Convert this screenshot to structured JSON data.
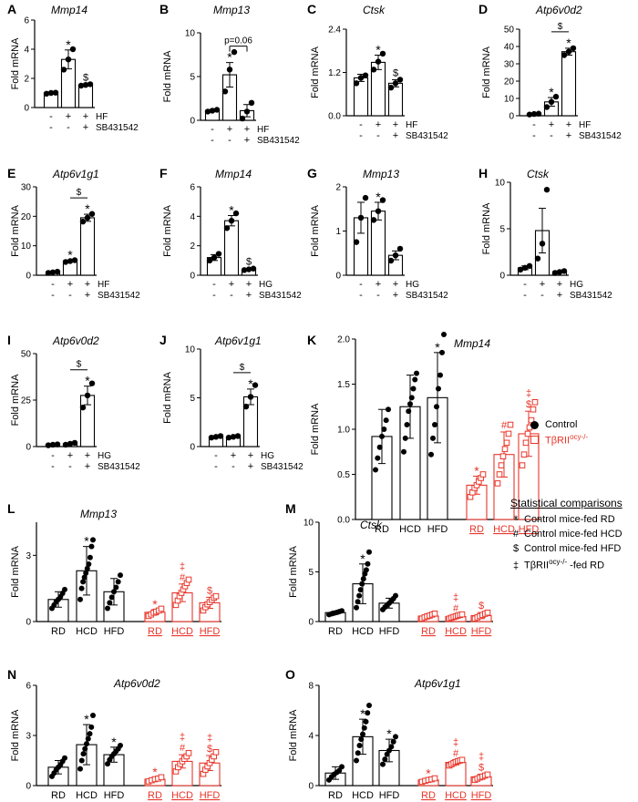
{
  "chart_data": [
    {
      "type": "bar",
      "panel": "A",
      "title": "Mmp14",
      "ylabel": "Fold mRNA",
      "ylim": [
        0,
        6
      ],
      "yticks": [
        "0",
        "2",
        "4",
        "6"
      ],
      "groups": [
        {
          "mean": 1.0,
          "err": 0.05,
          "points": [
            0.95,
            1.0,
            1.02
          ]
        },
        {
          "mean": 3.3,
          "err": 0.65,
          "points": [
            2.6,
            3.3,
            4.0
          ]
        },
        {
          "mean": 1.55,
          "err": 0.05,
          "points": [
            1.5,
            1.55,
            1.6
          ]
        }
      ],
      "sig": [
        "",
        "*",
        "$"
      ],
      "treat_label": "HF",
      "inhib_label": "SB431542",
      "treat": [
        "-",
        "+",
        "+"
      ],
      "inhib": [
        "-",
        "-",
        "+"
      ]
    },
    {
      "type": "bar",
      "panel": "B",
      "title": "Mmp13",
      "ylabel": "Fold mRNA",
      "ylim": [
        0,
        10
      ],
      "yticks": [
        "0",
        "5",
        "10"
      ],
      "groups": [
        {
          "mean": 1.1,
          "err": 0.1,
          "points": [
            1.0,
            1.1,
            1.2
          ]
        },
        {
          "mean": 5.2,
          "err": 1.4,
          "points": [
            3.3,
            5.8,
            7.8
          ]
        },
        {
          "mean": 1.1,
          "err": 0.7,
          "points": [
            0.2,
            1.0,
            2.0
          ]
        }
      ],
      "sig": [
        "",
        "*",
        ""
      ],
      "bracket": {
        "from": 1,
        "to": 2,
        "label": "p=0.06"
      },
      "treat_label": "HF",
      "inhib_label": "SB431542",
      "treat": [
        "-",
        "+",
        "+"
      ],
      "inhib": [
        "-",
        "-",
        "+"
      ]
    },
    {
      "type": "bar",
      "panel": "C",
      "title": "Ctsk",
      "ylabel": "Fold mRNA",
      "ylim": [
        0,
        2.4
      ],
      "yticks": [
        "0.0",
        "1.2",
        "2.4"
      ],
      "groups": [
        {
          "mean": 1.05,
          "err": 0.1,
          "points": [
            0.9,
            1.05,
            1.12
          ]
        },
        {
          "mean": 1.48,
          "err": 0.2,
          "points": [
            1.28,
            1.5,
            1.72
          ]
        },
        {
          "mean": 0.9,
          "err": 0.1,
          "points": [
            0.78,
            0.9,
            1.0
          ]
        }
      ],
      "sig": [
        "",
        "*",
        "$"
      ],
      "treat_label": "HF",
      "inhib_label": "SB431542",
      "treat": [
        "-",
        "+",
        "+"
      ],
      "inhib": [
        "-",
        "-",
        "+"
      ]
    },
    {
      "type": "bar",
      "panel": "D",
      "title": "Atp6v0d2",
      "ylabel": "Fold mRNA",
      "ylim": [
        0,
        50
      ],
      "yticks": [
        "0",
        "10",
        "20",
        "30",
        "40",
        "50"
      ],
      "groups": [
        {
          "mean": 1.0,
          "err": 0.3,
          "points": [
            0.7,
            1.0,
            1.2
          ]
        },
        {
          "mean": 8.0,
          "err": 2.5,
          "points": [
            5.0,
            8.0,
            11.0
          ]
        },
        {
          "mean": 37.0,
          "err": 2.0,
          "points": [
            35.0,
            37.0,
            39.0
          ]
        }
      ],
      "sig": [
        "",
        "*",
        "*"
      ],
      "bracket": {
        "from": 1,
        "to": 2,
        "label": "$"
      },
      "treat_label": "HF",
      "inhib_label": "SB431542",
      "treat": [
        "-",
        "+",
        "+"
      ],
      "inhib": [
        "-",
        "-",
        "+"
      ]
    },
    {
      "type": "bar",
      "panel": "E",
      "title": "Atp6v1g1",
      "ylabel": "Fold mRNA",
      "ylim": [
        0,
        30
      ],
      "yticks": [
        "0",
        "10",
        "20",
        "30"
      ],
      "groups": [
        {
          "mean": 1.0,
          "err": 0.2,
          "points": [
            0.8,
            1.0,
            1.2
          ]
        },
        {
          "mean": 4.8,
          "err": 0.3,
          "points": [
            4.5,
            4.8,
            5.1
          ]
        },
        {
          "mean": 19.5,
          "err": 1.2,
          "points": [
            18.2,
            19.5,
            20.8
          ]
        }
      ],
      "sig": [
        "",
        "*",
        "*"
      ],
      "bracket": {
        "from": 1,
        "to": 2,
        "label": "$"
      },
      "treat_label": "HF",
      "inhib_label": "SB431542",
      "treat": [
        "-",
        "+",
        "+"
      ],
      "inhib": [
        "-",
        "-",
        "+"
      ]
    },
    {
      "type": "bar",
      "panel": "F",
      "title": "Mmp14",
      "ylabel": "Fold mRNA",
      "ylim": [
        0,
        6
      ],
      "yticks": [
        "0",
        "2",
        "4",
        "6"
      ],
      "groups": [
        {
          "mean": 1.2,
          "err": 0.2,
          "points": [
            1.0,
            1.2,
            1.45
          ]
        },
        {
          "mean": 3.7,
          "err": 0.35,
          "points": [
            3.2,
            3.7,
            4.2
          ]
        },
        {
          "mean": 0.4,
          "err": 0.05,
          "points": [
            0.35,
            0.4,
            0.45
          ]
        }
      ],
      "sig": [
        "",
        "*",
        "$"
      ],
      "treat_label": "HG",
      "inhib_label": "SB431542",
      "treat": [
        "-",
        "+",
        "+"
      ],
      "inhib": [
        "-",
        "-",
        "+"
      ]
    },
    {
      "type": "bar",
      "panel": "G",
      "title": "Mmp13",
      "ylabel": "Fold mRNA",
      "ylim": [
        0,
        2
      ],
      "yticks": [
        "0",
        "1",
        "2"
      ],
      "groups": [
        {
          "mean": 1.3,
          "err": 0.35,
          "points": [
            0.75,
            1.3,
            1.75
          ]
        },
        {
          "mean": 1.45,
          "err": 0.2,
          "points": [
            1.25,
            1.45,
            1.7
          ]
        },
        {
          "mean": 0.45,
          "err": 0.1,
          "points": [
            0.33,
            0.45,
            0.6
          ]
        }
      ],
      "sig": [
        "",
        "*",
        ""
      ],
      "treat_label": "HG",
      "inhib_label": "SB431542",
      "treat": [
        "-",
        "+",
        "+"
      ],
      "inhib": [
        "-",
        "-",
        "+"
      ]
    },
    {
      "type": "bar",
      "panel": "H",
      "title": "Ctsk",
      "ylabel": "Fold mRNA",
      "ylim": [
        0,
        10
      ],
      "yticks": [
        "0",
        "5",
        "10"
      ],
      "groups": [
        {
          "mean": 0.8,
          "err": 0.2,
          "points": [
            0.6,
            0.8,
            1.0
          ]
        },
        {
          "mean": 4.8,
          "err": 2.4,
          "points": [
            1.8,
            3.4,
            9.2
          ]
        },
        {
          "mean": 0.35,
          "err": 0.1,
          "points": [
            0.25,
            0.35,
            0.45
          ]
        }
      ],
      "sig": [
        "",
        "",
        ""
      ],
      "treat_label": "HG",
      "inhib_label": "SB431542",
      "treat": [
        "-",
        "+",
        "+"
      ],
      "inhib": [
        "-",
        "-",
        "+"
      ]
    },
    {
      "type": "bar",
      "panel": "I",
      "title": "Atp6v0d2",
      "ylabel": "Fold mRNA",
      "ylim": [
        0,
        50
      ],
      "yticks": [
        "0",
        "25",
        "50"
      ],
      "groups": [
        {
          "mean": 1.0,
          "err": 0.3,
          "points": [
            0.7,
            1.0,
            1.2
          ]
        },
        {
          "mean": 1.5,
          "err": 0.4,
          "points": [
            1.0,
            1.5,
            2.0
          ]
        },
        {
          "mean": 27.5,
          "err": 5.0,
          "points": [
            21.0,
            27.5,
            34.0
          ]
        }
      ],
      "sig": [
        "",
        "",
        "*"
      ],
      "bracket": {
        "from": 1,
        "to": 2,
        "label": "$"
      },
      "treat_label": "HG",
      "inhib_label": "SB431542",
      "treat": [
        "-",
        "+",
        "+"
      ],
      "inhib": [
        "-",
        "-",
        "+"
      ]
    },
    {
      "type": "bar",
      "panel": "J",
      "title": "Atp6v1g1",
      "ylabel": "Fold mRNA",
      "ylim": [
        0,
        10
      ],
      "yticks": [
        "0",
        "5",
        "10"
      ],
      "groups": [
        {
          "mean": 1.0,
          "err": 0.08,
          "points": [
            0.92,
            1.0,
            1.08
          ]
        },
        {
          "mean": 1.0,
          "err": 0.08,
          "points": [
            0.92,
            1.0,
            1.08
          ]
        },
        {
          "mean": 5.1,
          "err": 0.8,
          "points": [
            4.1,
            5.1,
            6.3
          ]
        }
      ],
      "sig": [
        "",
        "",
        "*"
      ],
      "bracket": {
        "from": 1,
        "to": 2,
        "label": "$"
      },
      "treat_label": "HG",
      "inhib_label": "SB431542",
      "treat": [
        "-",
        "+",
        "+"
      ],
      "inhib": [
        "-",
        "-",
        "+"
      ]
    },
    {
      "type": "bar",
      "panel": "K",
      "title": "Mmp14",
      "ylabel": "Fold mRNA",
      "ylim": [
        0,
        2
      ],
      "yticks": [
        "0.0",
        "0.5",
        "1.0",
        "1.5",
        "2.0"
      ],
      "categories": [
        "RD",
        "HCD",
        "HFD",
        "RD",
        "HCD",
        "HFD"
      ],
      "groups": [
        {
          "mean": 0.92,
          "err": 0.3,
          "points": [
            0.55,
            0.68,
            0.8,
            0.92,
            1.0,
            1.1,
            1.22
          ]
        },
        {
          "mean": 1.25,
          "err": 0.35,
          "points": [
            0.75,
            0.9,
            1.05,
            1.2,
            1.28,
            1.35,
            1.45,
            1.55,
            1.62
          ]
        },
        {
          "mean": 1.35,
          "err": 0.5,
          "points": [
            0.72,
            0.9,
            1.05,
            1.25,
            1.45,
            1.6,
            1.85,
            2.05
          ]
        },
        {
          "mean": 0.38,
          "err": 0.1,
          "points": [
            0.25,
            0.3,
            0.35,
            0.38,
            0.42,
            0.46,
            0.5
          ]
        },
        {
          "mean": 0.72,
          "err": 0.25,
          "points": [
            0.4,
            0.5,
            0.6,
            0.7,
            0.78,
            0.85,
            0.95,
            1.05
          ]
        },
        {
          "mean": 0.95,
          "err": 0.25,
          "points": [
            0.6,
            0.72,
            0.85,
            0.95,
            1.02,
            1.1,
            1.22,
            1.3
          ]
        }
      ],
      "sig": [
        "",
        "",
        "*",
        "*",
        "#",
        "$‡"
      ]
    },
    {
      "type": "bar",
      "panel": "L",
      "title": "Mmp13",
      "ylabel": "Fold mRNA",
      "ylim": [
        0,
        4.5
      ],
      "yticks": [
        "0",
        "3"
      ],
      "categories": [
        "RD",
        "HCD",
        "HFD",
        "RD",
        "HCD",
        "HFD"
      ],
      "groups": [
        {
          "mean": 1.0,
          "err": 0.35,
          "points": [
            0.6,
            0.75,
            0.9,
            1.0,
            1.12,
            1.28,
            1.45
          ]
        },
        {
          "mean": 2.3,
          "err": 1.1,
          "points": [
            1.0,
            1.5,
            1.8,
            2.0,
            2.2,
            2.4,
            2.6,
            2.9,
            3.4,
            3.7
          ]
        },
        {
          "mean": 1.35,
          "err": 0.6,
          "points": [
            0.6,
            0.85,
            1.1,
            1.35,
            1.55,
            1.8,
            2.1
          ]
        },
        {
          "mean": 0.42,
          "err": 0.12,
          "points": [
            0.25,
            0.32,
            0.4,
            0.45,
            0.5,
            0.58
          ]
        },
        {
          "mean": 1.3,
          "err": 0.4,
          "points": [
            0.75,
            0.95,
            1.15,
            1.3,
            1.45,
            1.6,
            1.75,
            1.9
          ]
        },
        {
          "mean": 0.85,
          "err": 0.25,
          "points": [
            0.5,
            0.65,
            0.78,
            0.88,
            0.98,
            1.08,
            1.15
          ]
        }
      ],
      "sig": [
        "",
        "*",
        "",
        "*",
        "#‡",
        "$"
      ]
    },
    {
      "type": "bar",
      "panel": "M",
      "title": "Ctsk",
      "ylabel": "Fold mRNA",
      "ylim": [
        0,
        10
      ],
      "yticks": [
        "0",
        "5",
        "10"
      ],
      "categories": [
        "RD",
        "HCD",
        "HFD",
        "RD",
        "HCD",
        "HFD"
      ],
      "groups": [
        {
          "mean": 0.9,
          "err": 0.15,
          "points": [
            0.7,
            0.78,
            0.85,
            0.92,
            1.0,
            1.08
          ]
        },
        {
          "mean": 3.8,
          "err": 2.0,
          "points": [
            1.4,
            2.0,
            2.6,
            3.2,
            3.8,
            4.3,
            4.8,
            5.2,
            5.8,
            7.0
          ]
        },
        {
          "mean": 1.85,
          "err": 0.5,
          "points": [
            1.2,
            1.45,
            1.65,
            1.85,
            2.05,
            2.3,
            2.6
          ]
        },
        {
          "mean": 0.55,
          "err": 0.2,
          "points": [
            0.3,
            0.42,
            0.52,
            0.6,
            0.7,
            0.8
          ]
        },
        {
          "mean": 0.5,
          "err": 0.15,
          "points": [
            0.3,
            0.38,
            0.46,
            0.52,
            0.6,
            0.66,
            0.72
          ]
        },
        {
          "mean": 0.6,
          "err": 0.3,
          "points": [
            0.3,
            0.42,
            0.55,
            0.66,
            0.78,
            0.9
          ]
        }
      ],
      "sig": [
        "",
        "*",
        "",
        "",
        "#‡",
        "$"
      ]
    },
    {
      "type": "bar",
      "panel": "N",
      "title": "Atp6v0d2",
      "ylabel": "Fold mRNA",
      "ylim": [
        0,
        6
      ],
      "yticks": [
        "0",
        "3",
        "6"
      ],
      "categories": [
        "RD",
        "HCD",
        "HFD",
        "RD",
        "HCD",
        "HFD"
      ],
      "groups": [
        {
          "mean": 1.1,
          "err": 0.4,
          "points": [
            0.55,
            0.75,
            0.95,
            1.1,
            1.25,
            1.45,
            1.65
          ]
        },
        {
          "mean": 2.45,
          "err": 1.2,
          "points": [
            1.0,
            1.5,
            1.9,
            2.2,
            2.5,
            2.8,
            3.1,
            3.5,
            4.2
          ]
        },
        {
          "mean": 1.85,
          "err": 0.45,
          "points": [
            1.3,
            1.55,
            1.75,
            1.9,
            2.05,
            2.2,
            2.4
          ]
        },
        {
          "mean": 0.38,
          "err": 0.1,
          "points": [
            0.25,
            0.32,
            0.38,
            0.42,
            0.5
          ]
        },
        {
          "mean": 1.45,
          "err": 0.4,
          "points": [
            0.85,
            1.1,
            1.3,
            1.45,
            1.6,
            1.75,
            1.95
          ]
        },
        {
          "mean": 1.35,
          "err": 0.45,
          "points": [
            0.7,
            0.95,
            1.15,
            1.35,
            1.55,
            1.75,
            2.0
          ]
        }
      ],
      "sig": [
        "",
        "*",
        "*",
        "*",
        "#‡",
        "$‡"
      ]
    },
    {
      "type": "bar",
      "panel": "O",
      "title": "Atp6v1g1",
      "ylabel": "Fold mRNA",
      "ylim": [
        0,
        8
      ],
      "yticks": [
        "0",
        "4",
        "8"
      ],
      "categories": [
        "RD",
        "HCD",
        "HFD",
        "RD",
        "HCD",
        "HFD"
      ],
      "groups": [
        {
          "mean": 1.0,
          "err": 0.5,
          "points": [
            0.45,
            0.7,
            0.9,
            1.05,
            1.2,
            1.5
          ]
        },
        {
          "mean": 3.9,
          "err": 1.4,
          "points": [
            2.0,
            2.6,
            3.2,
            3.7,
            4.1,
            4.6,
            5.1,
            5.8,
            6.4
          ]
        },
        {
          "mean": 2.8,
          "err": 0.9,
          "points": [
            1.7,
            2.1,
            2.5,
            2.8,
            3.1,
            3.5,
            3.9
          ]
        },
        {
          "mean": 0.45,
          "err": 0.1,
          "points": [
            0.3,
            0.38,
            0.45,
            0.5,
            0.58
          ]
        },
        {
          "mean": 1.85,
          "err": 0.2,
          "points": [
            1.6,
            1.7,
            1.8,
            1.88,
            1.95,
            2.0,
            2.05
          ]
        },
        {
          "mean": 0.7,
          "err": 0.2,
          "points": [
            0.45,
            0.55,
            0.65,
            0.72,
            0.8,
            0.88
          ]
        }
      ],
      "sig": [
        "",
        "*",
        "*",
        "*",
        "#‡",
        "$‡"
      ]
    }
  ],
  "legend": {
    "control": "Control",
    "ko_prefix": "TβRII",
    "ko_sup": "ocy-/-"
  },
  "stats": {
    "title": "Statistical comparisons",
    "items": [
      {
        "symbol": "*",
        "label": "Control mice-fed RD"
      },
      {
        "symbol": "#",
        "label": "Control mice-fed HCD"
      },
      {
        "symbol": "$",
        "label": "Control mice-fed HFD"
      },
      {
        "symbol": "‡",
        "label_prefix": "TβRII",
        "label_sup": "ocy-/-",
        "label_suffix": " -fed RD"
      }
    ]
  },
  "colors": {
    "control": "#000000",
    "ko": "#e8352a"
  }
}
